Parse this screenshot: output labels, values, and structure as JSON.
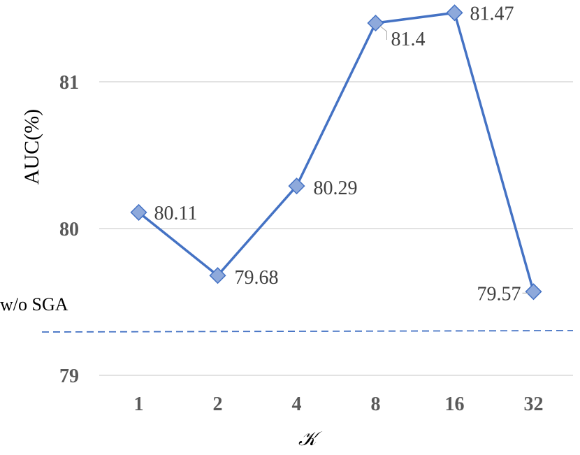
{
  "chart_data": {
    "type": "line",
    "categories": [
      "1",
      "2",
      "4",
      "8",
      "16",
      "32"
    ],
    "series": [
      {
        "values": [
          80.11,
          79.68,
          80.29,
          81.4,
          81.47,
          79.57
        ]
      }
    ],
    "data_labels": [
      "80.11",
      "79.68",
      "80.29",
      "81.4",
      "81.47",
      "79.57"
    ],
    "yticks": [
      "79",
      "80",
      "81"
    ],
    "ylim": [
      79,
      81.6
    ],
    "xlabel": "𝒦",
    "ylabel": "AUC(%)",
    "reference_line": {
      "label": "w/o  SGA",
      "value": 79.3,
      "style": "dashed"
    },
    "grid": "horizontal",
    "legend": "none",
    "colors": {
      "line": "#4472c4",
      "marker_fill": "#8ea9db",
      "marker_edge": "#4472c4",
      "grid": "#d9d9d9",
      "reference": "#4472c4"
    }
  }
}
